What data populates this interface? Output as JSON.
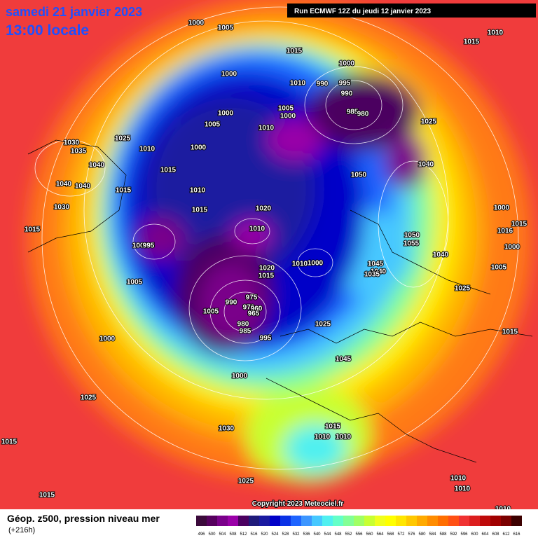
{
  "header": {
    "date": "samedi 21 janvier 2023",
    "time": "13:00 locale",
    "run": "Run ECMWF 12Z du jeudi 12 janvier 2023"
  },
  "copyright": "Copyright 2023 Meteociel.fr",
  "footer": {
    "title": "Géop. z500, pression niveau mer",
    "lead": "(+216h)"
  },
  "isobar_labels": [
    "1000",
    "1005",
    "1015",
    "1010",
    "1015",
    "1000",
    "1000",
    "1010",
    "990",
    "995",
    "990",
    "1005",
    "1000",
    "1000",
    "1005",
    "1010",
    "985",
    "980",
    "1025",
    "1025",
    "1030",
    "1035",
    "1010",
    "1000",
    "1040",
    "1015",
    "1050",
    "1040",
    "1040",
    "1040",
    "1015",
    "1010",
    "1030",
    "1015",
    "1020",
    "1000",
    "1010",
    "1015",
    "1016",
    "1015",
    "1050",
    "1055",
    "1000",
    "995",
    "1000",
    "1040",
    "1045",
    "1010",
    "1000",
    "1020",
    "1015",
    "1040",
    "1005",
    "1035",
    "1005",
    "1025",
    "975",
    "990",
    "970",
    "960",
    "965",
    "1005",
    "1015",
    "980",
    "985",
    "1025",
    "1000",
    "995",
    "1045",
    "1000",
    "1025",
    "1030",
    "1015",
    "1010",
    "1010",
    "1015",
    "1025",
    "1010",
    "1010",
    "1015",
    "1010"
  ],
  "legend": [
    {
      "label": "496",
      "color": "#3b0a3b"
    },
    {
      "label": "500",
      "color": "#56005e"
    },
    {
      "label": "504",
      "color": "#7a008a"
    },
    {
      "label": "508",
      "color": "#9a00a8"
    },
    {
      "label": "512",
      "color": "#4b0060"
    },
    {
      "label": "516",
      "color": "#1f1a7a"
    },
    {
      "label": "520",
      "color": "#1a1aa0"
    },
    {
      "label": "524",
      "color": "#0000c8"
    },
    {
      "label": "528",
      "color": "#0a32e6"
    },
    {
      "label": "532",
      "color": "#1e64ff"
    },
    {
      "label": "536",
      "color": "#3c96ff"
    },
    {
      "label": "540",
      "color": "#46c8ff"
    },
    {
      "label": "544",
      "color": "#50f0f0"
    },
    {
      "label": "548",
      "color": "#64ffc8"
    },
    {
      "label": "552",
      "color": "#82ff96"
    },
    {
      "label": "556",
      "color": "#a0ff64"
    },
    {
      "label": "560",
      "color": "#c8ff32"
    },
    {
      "label": "564",
      "color": "#f0ff1e"
    },
    {
      "label": "568",
      "color": "#ffff00"
    },
    {
      "label": "572",
      "color": "#ffe600"
    },
    {
      "label": "576",
      "color": "#ffc800"
    },
    {
      "label": "580",
      "color": "#ffaa00"
    },
    {
      "label": "584",
      "color": "#ff8c00"
    },
    {
      "label": "588",
      "color": "#ff6e00"
    },
    {
      "label": "592",
      "color": "#ff5014"
    },
    {
      "label": "596",
      "color": "#f03232"
    },
    {
      "label": "600",
      "color": "#dc1e1e"
    },
    {
      "label": "604",
      "color": "#be0a0a"
    },
    {
      "label": "608",
      "color": "#a00000"
    },
    {
      "label": "612",
      "color": "#7a0000"
    },
    {
      "label": "616",
      "color": "#3c0000"
    }
  ]
}
